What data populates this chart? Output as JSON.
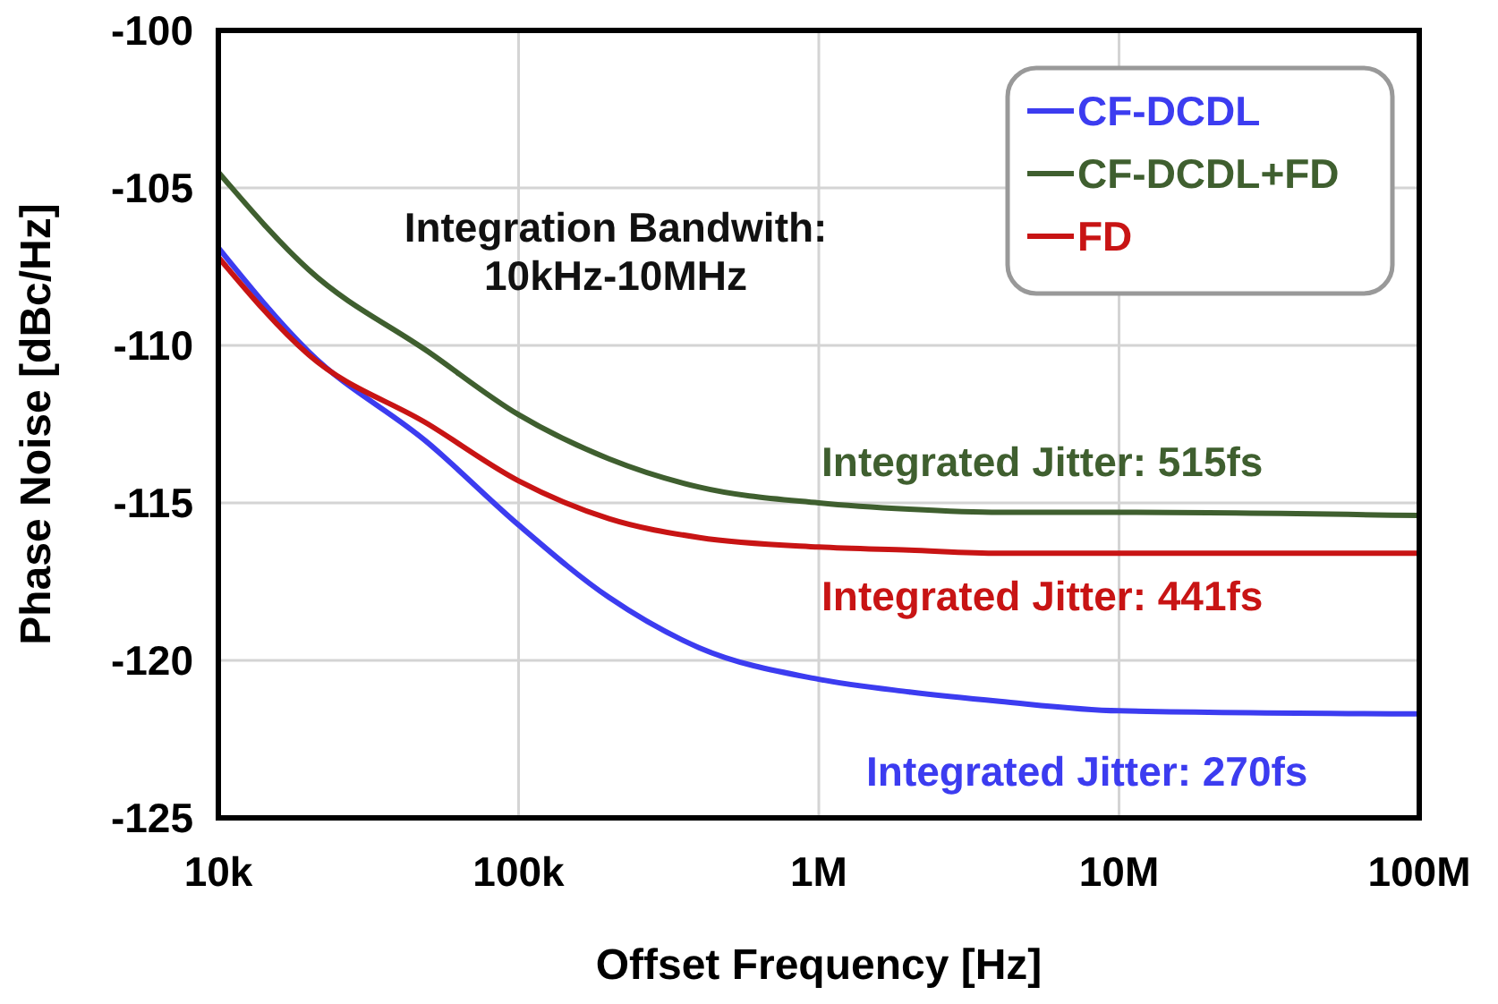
{
  "chart_data": {
    "type": "line",
    "xlabel": "Offset Frequency [Hz]",
    "ylabel": "Phase Noise [dBc/Hz]",
    "log": "x",
    "x": [
      10000,
      20000,
      50000,
      100000,
      200000,
      400000,
      1000000,
      2000000,
      4000000,
      10000000,
      100000000
    ],
    "series": [
      {
        "name": "CF-DCDL",
        "color": "#3c3cf0",
        "values": [
          -106.9,
          -110.2,
          -113.1,
          -115.7,
          -118.0,
          -119.6,
          -120.6,
          -121.0,
          -121.3,
          -121.6,
          -121.7
        ]
      },
      {
        "name": "CF-DCDL+FD",
        "color": "#3f5f2f",
        "values": [
          -104.5,
          -107.6,
          -110.2,
          -112.2,
          -113.6,
          -114.5,
          -115.0,
          -115.2,
          -115.3,
          -115.3,
          -115.4
        ]
      },
      {
        "name": "FD",
        "color": "#c81414",
        "values": [
          -107.2,
          -110.3,
          -112.5,
          -114.3,
          -115.5,
          -116.1,
          -116.4,
          -116.5,
          -116.6,
          -116.6,
          -116.6
        ]
      }
    ],
    "xlim": [
      10000,
      100000000
    ],
    "xticks": [
      {
        "value": 10000,
        "label": "10k"
      },
      {
        "value": 100000,
        "label": "100k"
      },
      {
        "value": 1000000,
        "label": "1M"
      },
      {
        "value": 10000000,
        "label": "10M"
      },
      {
        "value": 100000000,
        "label": "100M"
      }
    ],
    "ylim": [
      -125,
      -100
    ],
    "yticks": [
      -125,
      -120,
      -115,
      -110,
      -105,
      -100
    ],
    "grid": true,
    "legend": "top right",
    "marker": "none",
    "line_style": "solid",
    "annotations": [
      "Integration Bandwith:\n10kHz-10MHz",
      "Integrated Jitter: 515fs",
      "Integrated Jitter: 441fs",
      "Integrated Jitter: 270fs"
    ]
  }
}
